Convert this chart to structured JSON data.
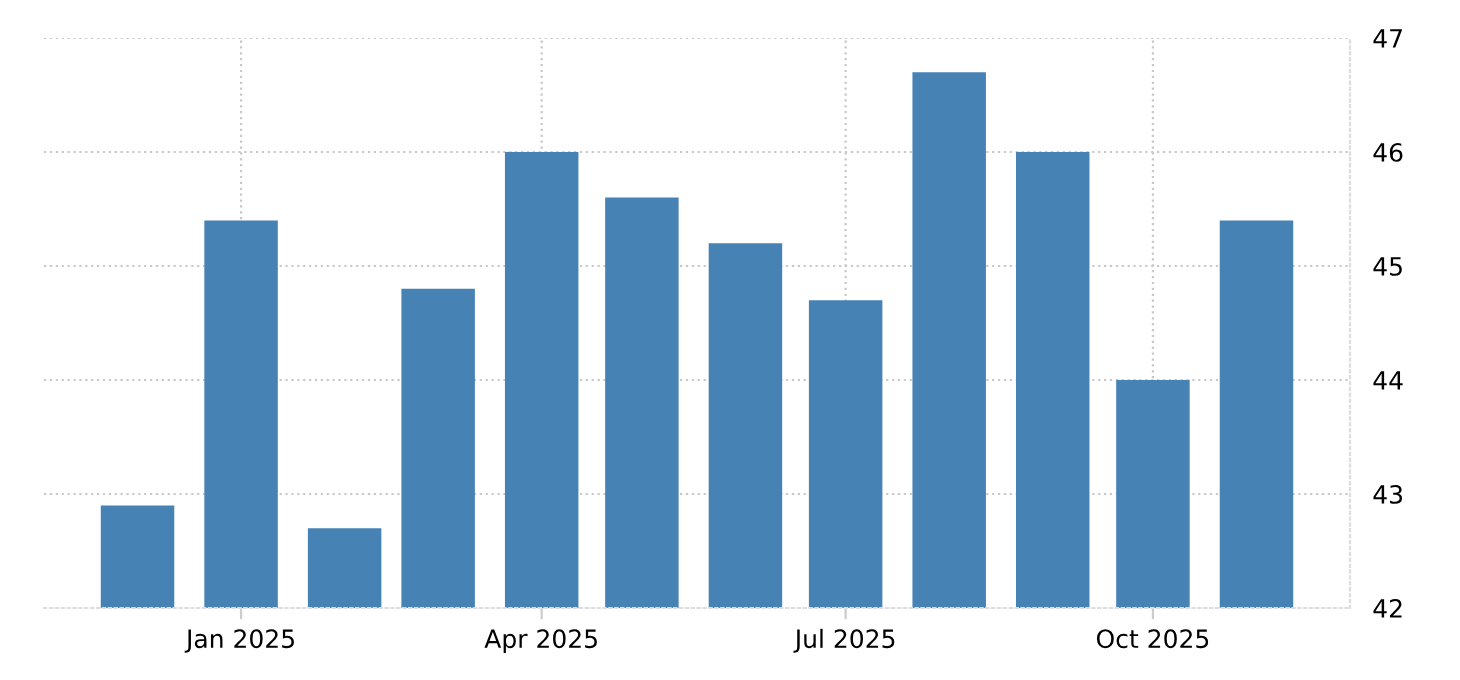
{
  "chart_data": {
    "type": "bar",
    "x": [
      "2024-12",
      "2025-01",
      "2025-02",
      "2025-03",
      "2025-04",
      "2025-05",
      "2025-06",
      "2025-07",
      "2025-08",
      "2025-09",
      "2025-10",
      "2025-11"
    ],
    "values": [
      42.9,
      45.4,
      42.7,
      44.8,
      46.0,
      45.6,
      45.2,
      44.7,
      46.7,
      46.0,
      44.0,
      45.4
    ],
    "color": "#4682b4",
    "xlim": [
      "2024-11-03",
      "2025-11-29"
    ],
    "xticks": [
      {
        "value": "2025-01",
        "label": "Jan 2025"
      },
      {
        "value": "2025-04",
        "label": "Apr 2025"
      },
      {
        "value": "2025-07",
        "label": "Jul 2025"
      },
      {
        "value": "2025-10",
        "label": "Oct 2025"
      }
    ],
    "ylim": [
      42,
      47
    ],
    "yticks": [
      42,
      43,
      44,
      45,
      46,
      47
    ],
    "grid": true
  }
}
